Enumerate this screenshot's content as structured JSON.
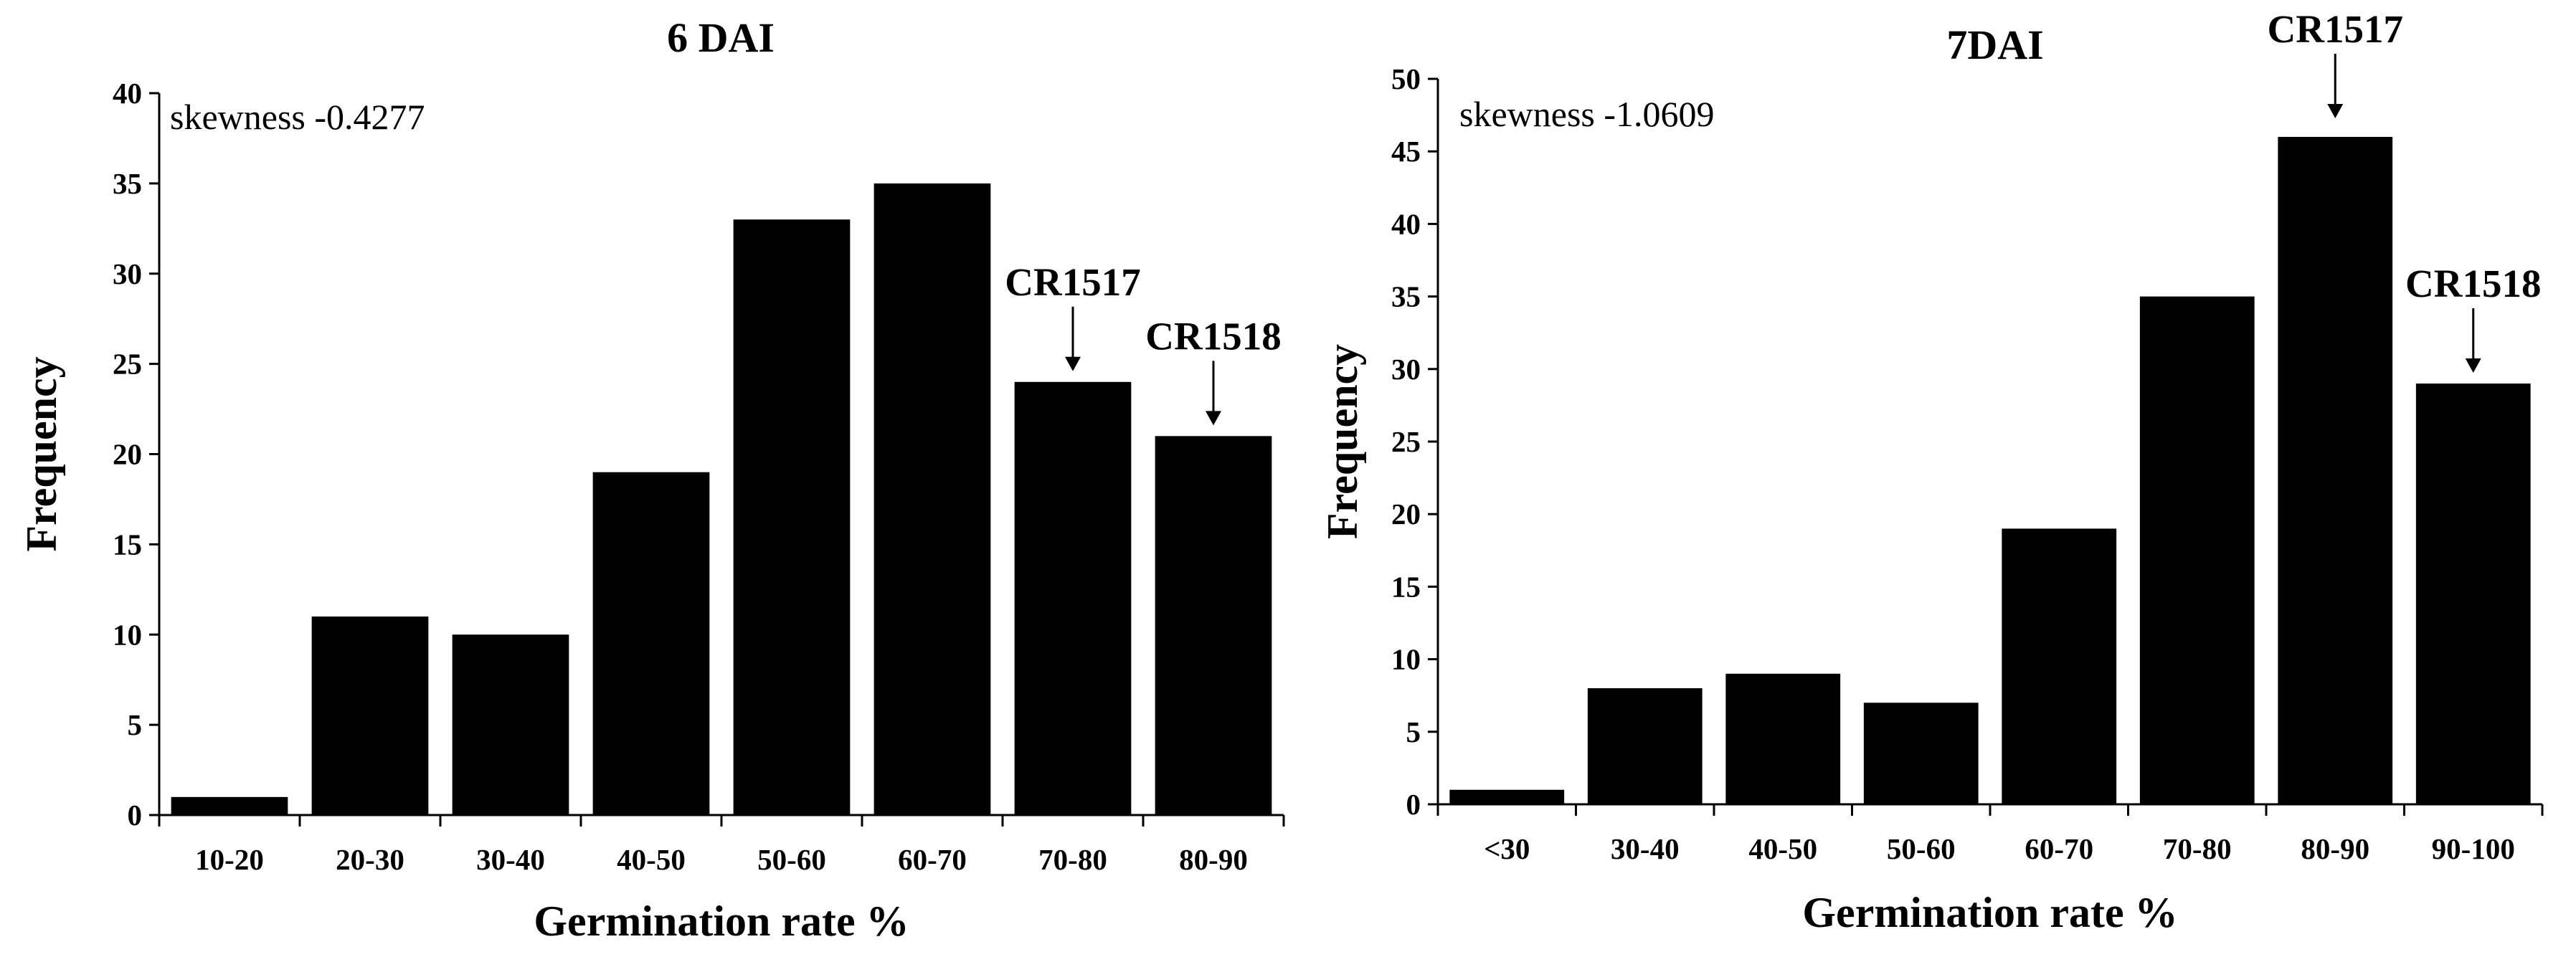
{
  "chart_data": [
    {
      "type": "bar",
      "title": "6 DAI",
      "xlabel": "Germination rate %",
      "ylabel": "Frequency",
      "categories": [
        "10-20",
        "20-30",
        "30-40",
        "40-50",
        "50-60",
        "60-70",
        "70-80",
        "80-90"
      ],
      "values": [
        1,
        11,
        10,
        19,
        33,
        35,
        24,
        21
      ],
      "ylim": [
        0,
        40
      ],
      "yticks": [
        "0",
        "5",
        "10",
        "15",
        "20",
        "25",
        "30",
        "35",
        "40"
      ],
      "bar_color": "#000000",
      "grid": false,
      "skewness_text": "skewness -0.4277",
      "annotations": [
        {
          "text": "CR1517",
          "category_index": 6
        },
        {
          "text": "CR1518",
          "category_index": 7
        }
      ]
    },
    {
      "type": "bar",
      "title": "7DAI",
      "xlabel": "Germination rate %",
      "ylabel": "Frequency",
      "categories": [
        "<30",
        "30-40",
        "40-50",
        "50-60",
        "60-70",
        "70-80",
        "80-90",
        "90-100"
      ],
      "values": [
        1,
        8,
        9,
        7,
        19,
        35,
        46,
        29
      ],
      "ylim": [
        0,
        50
      ],
      "yticks": [
        "0",
        "5",
        "10",
        "15",
        "20",
        "25",
        "30",
        "35",
        "40",
        "45",
        "50"
      ],
      "bar_color": "#000000",
      "grid": false,
      "skewness_text": "skewness -1.0609",
      "annotations": [
        {
          "text": "CR1517",
          "category_index": 6
        },
        {
          "text": "CR1518",
          "category_index": 7
        }
      ]
    }
  ]
}
